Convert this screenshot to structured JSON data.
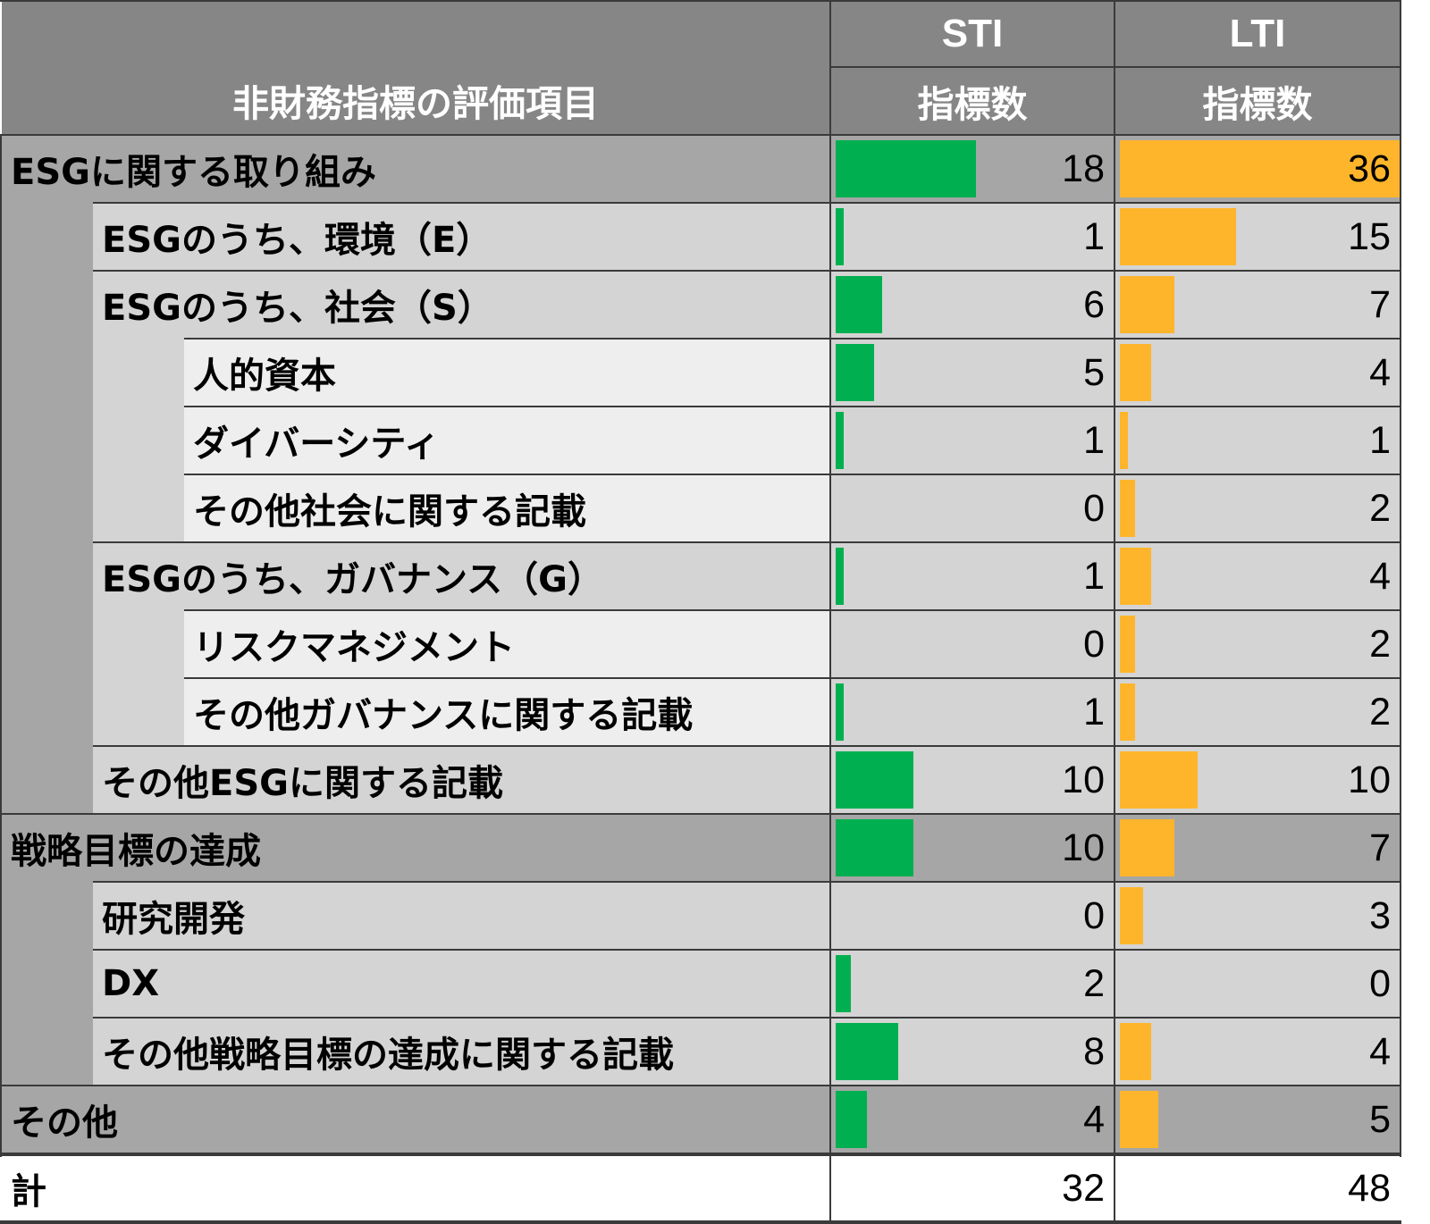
{
  "chart_data": {
    "type": "table",
    "header": {
      "item": "非財務指標の評価項目",
      "sti": "STI",
      "lti": "LTI",
      "count": "指標数"
    },
    "colors": {
      "sti": "#00b050",
      "lti": "#ffb52b"
    },
    "scale_max": 36,
    "rows": [
      {
        "label": "ESGに関する取り組み",
        "level": 0,
        "sti": 18,
        "lti": 36
      },
      {
        "label": "ESGのうち、環境（E）",
        "level": 1,
        "sti": 1,
        "lti": 15
      },
      {
        "label": "ESGのうち、社会（S）",
        "level": 1,
        "sti": 6,
        "lti": 7
      },
      {
        "label": "人的資本",
        "level": 2,
        "sti": 5,
        "lti": 4
      },
      {
        "label": "ダイバーシティ",
        "level": 2,
        "sti": 1,
        "lti": 1
      },
      {
        "label": "その他社会に関する記載",
        "level": 2,
        "sti": 0,
        "lti": 2
      },
      {
        "label": "ESGのうち、ガバナンス（G）",
        "level": 1,
        "sti": 1,
        "lti": 4
      },
      {
        "label": "リスクマネジメント",
        "level": 2,
        "sti": 0,
        "lti": 2
      },
      {
        "label": "その他ガバナンスに関する記載",
        "level": 2,
        "sti": 1,
        "lti": 2
      },
      {
        "label": "その他ESGに関する記載",
        "level": 1,
        "sti": 10,
        "lti": 10
      },
      {
        "label": "戦略目標の達成",
        "level": 0,
        "sti": 10,
        "lti": 7
      },
      {
        "label": "研究開発",
        "level": 1,
        "sti": 0,
        "lti": 3
      },
      {
        "label": "DX",
        "level": 1,
        "sti": 2,
        "lti": 0
      },
      {
        "label": "その他戦略目標の達成に関する記載",
        "level": 1,
        "sti": 8,
        "lti": 4
      },
      {
        "label": "その他",
        "level": 0,
        "sti": 4,
        "lti": 5
      }
    ],
    "total": {
      "label": "計",
      "sti": 32,
      "lti": 48
    }
  }
}
